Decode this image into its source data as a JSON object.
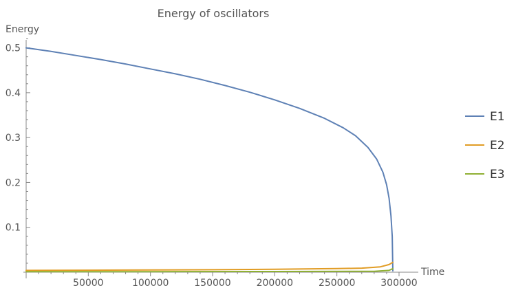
{
  "chart_data": {
    "type": "line",
    "title": "Energy of oscillators",
    "xlabel": "Time",
    "ylabel": "Energy",
    "xlim": [
      0,
      300000
    ],
    "ylim": [
      0,
      0.53
    ],
    "x_ticks": [
      50000,
      100000,
      150000,
      200000,
      250000,
      300000
    ],
    "x_tick_labels": [
      "50000",
      "100000",
      "150000",
      "200000",
      "250000",
      "300000"
    ],
    "y_ticks": [
      0.1,
      0.2,
      0.3,
      0.4,
      0.5
    ],
    "y_tick_labels": [
      "0.1",
      "0.2",
      "0.3",
      "0.4",
      "0.5"
    ],
    "grid": false,
    "legend_position": "right",
    "series": [
      {
        "name": "E1",
        "color": "#5E81B5",
        "x": [
          0,
          20000,
          40000,
          60000,
          80000,
          100000,
          120000,
          140000,
          160000,
          180000,
          200000,
          220000,
          240000,
          255000,
          265000,
          275000,
          282000,
          287000,
          290000,
          292000,
          293500,
          294500,
          295000
        ],
        "y": [
          0.5,
          0.492,
          0.483,
          0.474,
          0.464,
          0.453,
          0.442,
          0.43,
          0.416,
          0.401,
          0.384,
          0.365,
          0.343,
          0.322,
          0.304,
          0.278,
          0.252,
          0.223,
          0.195,
          0.165,
          0.125,
          0.08,
          0.003
        ]
      },
      {
        "name": "E2",
        "color": "#E19C24",
        "x": [
          0,
          50000,
          100000,
          150000,
          200000,
          250000,
          270000,
          285000,
          292000,
          295000
        ],
        "y": [
          0.004,
          0.0045,
          0.005,
          0.0055,
          0.0065,
          0.008,
          0.009,
          0.012,
          0.017,
          0.022
        ]
      },
      {
        "name": "E3",
        "color": "#8FB032",
        "x": [
          0,
          100000,
          200000,
          280000,
          292000,
          295000
        ],
        "y": [
          0.001,
          0.0012,
          0.0015,
          0.002,
          0.004,
          0.008
        ]
      }
    ]
  }
}
